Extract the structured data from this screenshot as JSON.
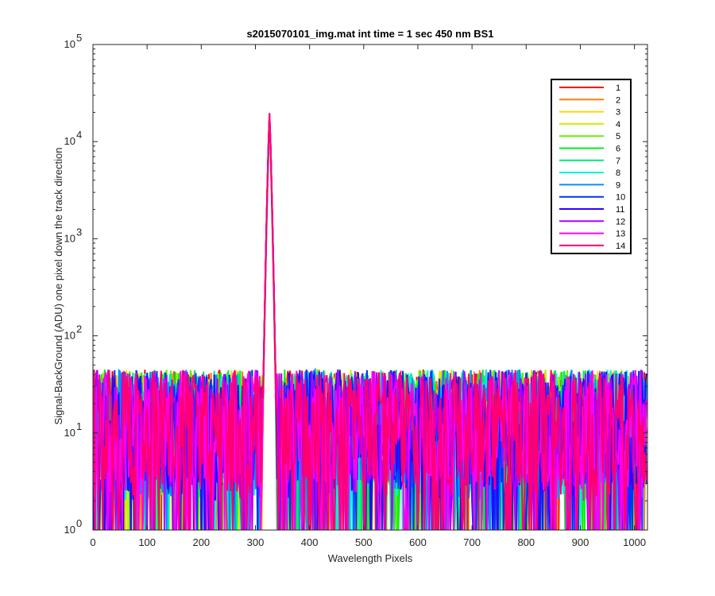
{
  "chart_data": {
    "type": "line",
    "title": "s2015070101_img.mat int time = 1 sec  450 nm BS1",
    "xlabel": "Wavelength Pixels",
    "ylabel": "Signal-BackGround (ADU) one pixel down the track direction",
    "x_range": [
      0,
      1024
    ],
    "y_range": [
      1,
      100000
    ],
    "y_scale": "log",
    "x_ticks": [
      "0",
      "100",
      "200",
      "300",
      "400",
      "500",
      "600",
      "700",
      "800",
      "900",
      "1000"
    ],
    "x_tick_values": [
      0,
      100,
      200,
      300,
      400,
      500,
      600,
      700,
      800,
      900,
      1000
    ],
    "y_ticks": [
      {
        "base": "10",
        "exp": "0",
        "value": 1
      },
      {
        "base": "10",
        "exp": "1",
        "value": 10
      },
      {
        "base": "10",
        "exp": "2",
        "value": 100
      },
      {
        "base": "10",
        "exp": "3",
        "value": 1000
      },
      {
        "base": "10",
        "exp": "4",
        "value": 10000
      },
      {
        "base": "10",
        "exp": "5",
        "value": 100000
      }
    ],
    "grid": false,
    "legend_position": "top-right",
    "peak": {
      "x": 326,
      "y_max": 20000
    },
    "noise_range": [
      1,
      45
    ],
    "series": [
      {
        "name": "1",
        "color": "#ff0000"
      },
      {
        "name": "2",
        "color": "#ff7f00"
      },
      {
        "name": "3",
        "color": "#ffd700"
      },
      {
        "name": "4",
        "color": "#c8f000"
      },
      {
        "name": "5",
        "color": "#66f000"
      },
      {
        "name": "6",
        "color": "#00f020"
      },
      {
        "name": "7",
        "color": "#00e680"
      },
      {
        "name": "8",
        "color": "#00f0e0"
      },
      {
        "name": "9",
        "color": "#0090ff"
      },
      {
        "name": "10",
        "color": "#0030ff"
      },
      {
        "name": "11",
        "color": "#3000ff"
      },
      {
        "name": "12",
        "color": "#b000ff"
      },
      {
        "name": "13",
        "color": "#ff00f0"
      },
      {
        "name": "14",
        "color": "#ff0070"
      }
    ]
  }
}
